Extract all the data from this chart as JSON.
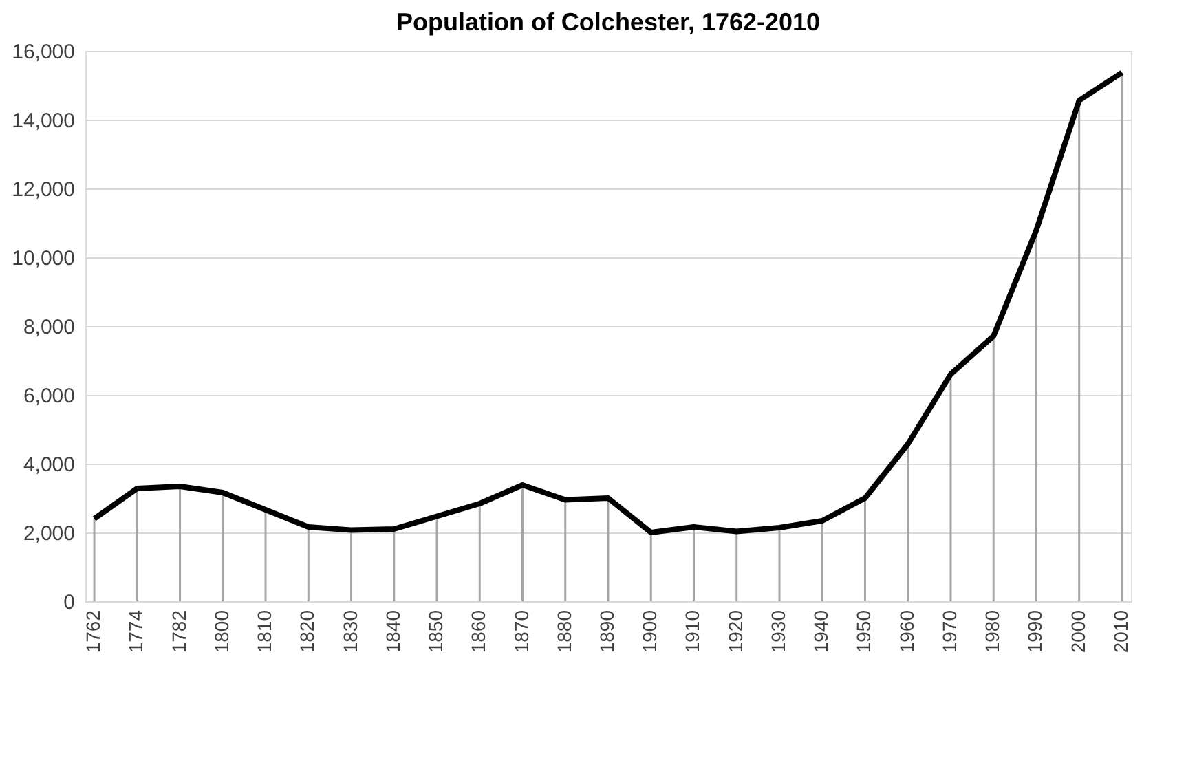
{
  "chart_data": {
    "type": "line",
    "title": "Population of Colchester, 1762-2010",
    "categories": [
      "1762",
      "1774",
      "1782",
      "1800",
      "1810",
      "1820",
      "1830",
      "1840",
      "1850",
      "1860",
      "1870",
      "1880",
      "1890",
      "1900",
      "1910",
      "1920",
      "1930",
      "1940",
      "1950",
      "1960",
      "1970",
      "1980",
      "1990",
      "2000",
      "2010"
    ],
    "series": [
      {
        "type": "bar",
        "color": "#a6a6a6",
        "values": [
          2400,
          3280,
          3340,
          3160,
          2660,
          2160,
          2070,
          2100,
          2470,
          2840,
          3380,
          2950,
          3000,
          2000,
          2160,
          2030,
          2140,
          2340,
          3000,
          4570,
          6600,
          7710,
          10790,
          14560,
          15370
        ]
      },
      {
        "color": "#000000",
        "values": [
          2400,
          3280,
          3340,
          3160,
          2660,
          2160,
          2070,
          2100,
          2470,
          2840,
          3380,
          2950,
          3000,
          2000,
          2160,
          2030,
          2140,
          2340,
          3000,
          4570,
          6600,
          7710,
          10790,
          14560,
          15370
        ]
      }
    ],
    "ylim": [
      0,
      16000
    ],
    "yticks": [
      0,
      {
        "value": 2000,
        "label": "2,000"
      },
      {
        "value": 4000,
        "label": "4,000"
      },
      {
        "value": 6000,
        "label": "6,000"
      },
      {
        "value": 8000,
        "label": "8,000"
      },
      {
        "value": 10000,
        "label": "10,000"
      },
      {
        "value": 12000,
        "label": "12,000"
      },
      {
        "value": 14000,
        "label": "14,000"
      },
      {
        "value": 16000,
        "label": "16,000"
      }
    ],
    "grid": "y",
    "marker": "none",
    "line_style": "solid"
  }
}
